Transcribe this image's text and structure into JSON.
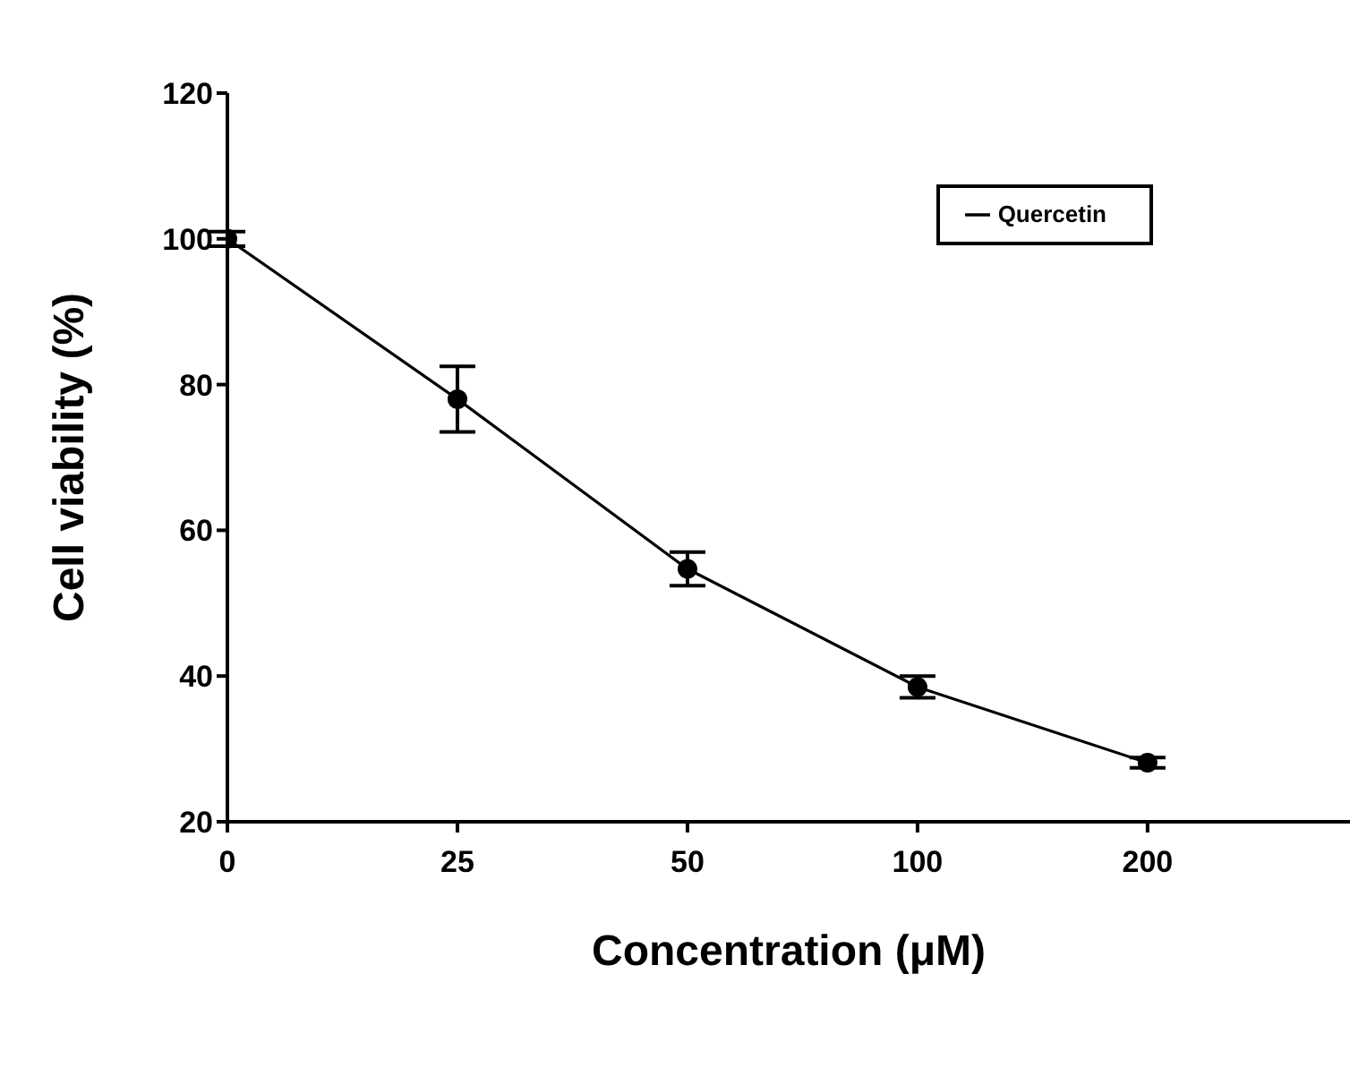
{
  "chart_data": {
    "type": "line",
    "xlabel": "Concentration (μM)",
    "ylabel": "Cell viability (%)",
    "categories": [
      "0",
      "25",
      "50",
      "100",
      "200"
    ],
    "series": [
      {
        "name": "Quercetin",
        "color": "#000000",
        "values": [
          100,
          78,
          54.7,
          38.5,
          28.1
        ],
        "errors": [
          1,
          4.5,
          2.3,
          1.5,
          0.7
        ]
      }
    ],
    "ylim": [
      20,
      120
    ],
    "yticks": [
      20,
      40,
      60,
      80,
      100,
      120
    ],
    "grid": false,
    "legend": "top right",
    "marker": "circle",
    "line_style": "solid"
  }
}
